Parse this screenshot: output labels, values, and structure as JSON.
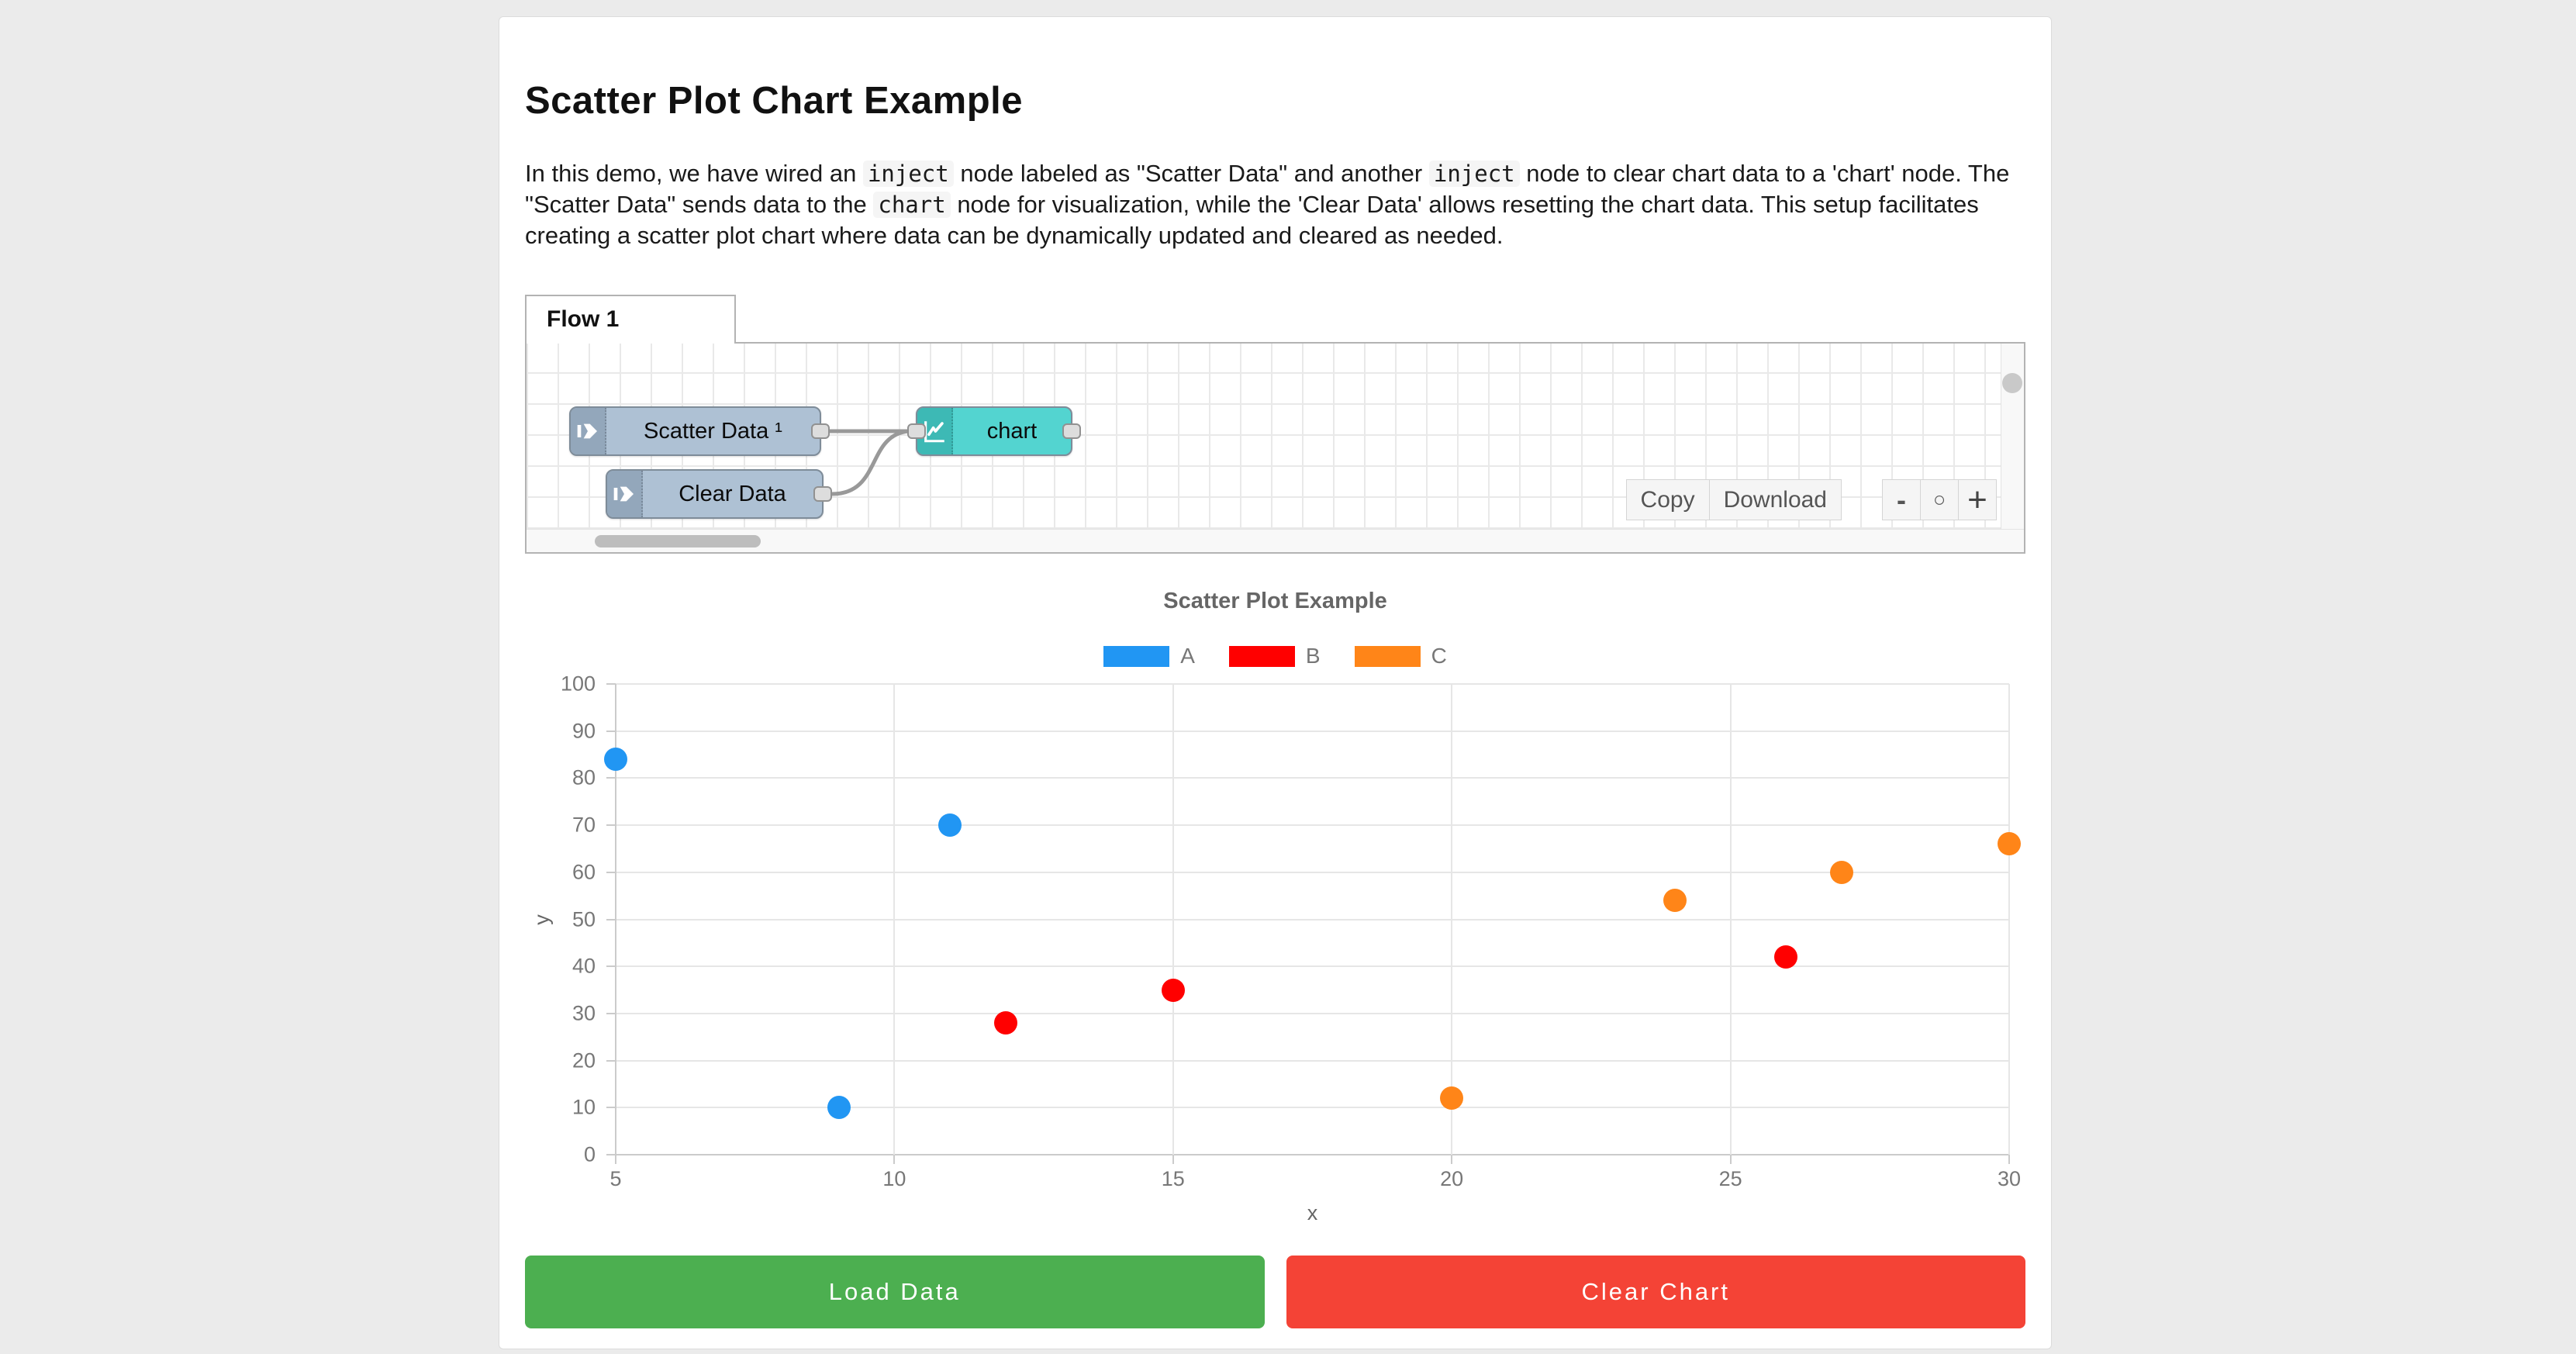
{
  "page": {
    "title": "Scatter Plot Chart Example"
  },
  "intro": {
    "segments": [
      {
        "text": "In this demo, we have wired an ",
        "code": false
      },
      {
        "text": "inject",
        "code": true
      },
      {
        "text": " node labeled as \"Scatter Data\" and another ",
        "code": false
      },
      {
        "text": "inject",
        "code": true
      },
      {
        "text": " node to clear chart data to a 'chart' node. The \"Scatter Data\" sends data to the ",
        "code": false
      },
      {
        "text": "chart",
        "code": true
      },
      {
        "text": " node for visualization, while the 'Clear Data' allows resetting the chart data. This setup facilitates creating a scatter plot chart where data can be dynamically updated and cleared as needed.",
        "code": false
      }
    ]
  },
  "flow_editor": {
    "tab_label": "Flow 1",
    "nodes": [
      {
        "id": "scatter-data",
        "label": "Scatter Data ¹",
        "type": "inject"
      },
      {
        "id": "clear-data",
        "label": "Clear Data",
        "type": "inject"
      },
      {
        "id": "chart",
        "label": "chart",
        "type": "chart"
      }
    ],
    "toolbar": {
      "copy_label": "Copy",
      "download_label": "Download"
    },
    "zoom_controls": {
      "zoom_out_label": "-",
      "zoom_reset_label": "○",
      "zoom_in_label": "+"
    },
    "colors": {
      "inject_node": "#aec1d4",
      "chart_node": "#53d4d0",
      "wire": "#999999"
    }
  },
  "chart_data": {
    "type": "scatter",
    "title": "Scatter Plot Example",
    "xlabel": "x",
    "ylabel": "y",
    "xlim": [
      5,
      30
    ],
    "ylim": [
      0,
      100
    ],
    "x_ticks": [
      5,
      10,
      15,
      20,
      25,
      30
    ],
    "y_ticks": [
      0,
      10,
      20,
      30,
      40,
      50,
      60,
      70,
      80,
      90,
      100
    ],
    "grid": true,
    "legend_position": "top",
    "series": [
      {
        "name": "A",
        "color": "#2196F3",
        "points": [
          [
            5,
            84
          ],
          [
            9,
            10
          ],
          [
            11,
            70
          ]
        ]
      },
      {
        "name": "B",
        "color": "#FF0000",
        "points": [
          [
            12,
            28
          ],
          [
            15,
            35
          ],
          [
            26,
            42
          ]
        ]
      },
      {
        "name": "C",
        "color": "#FF8518",
        "points": [
          [
            20,
            12
          ],
          [
            24,
            54
          ],
          [
            27,
            60
          ],
          [
            30,
            66
          ]
        ]
      }
    ]
  },
  "actions": {
    "load_button": {
      "label": "Load Data",
      "color": "#4CAF50"
    },
    "clear_button": {
      "label": "Clear Chart",
      "color": "#F44336"
    }
  }
}
